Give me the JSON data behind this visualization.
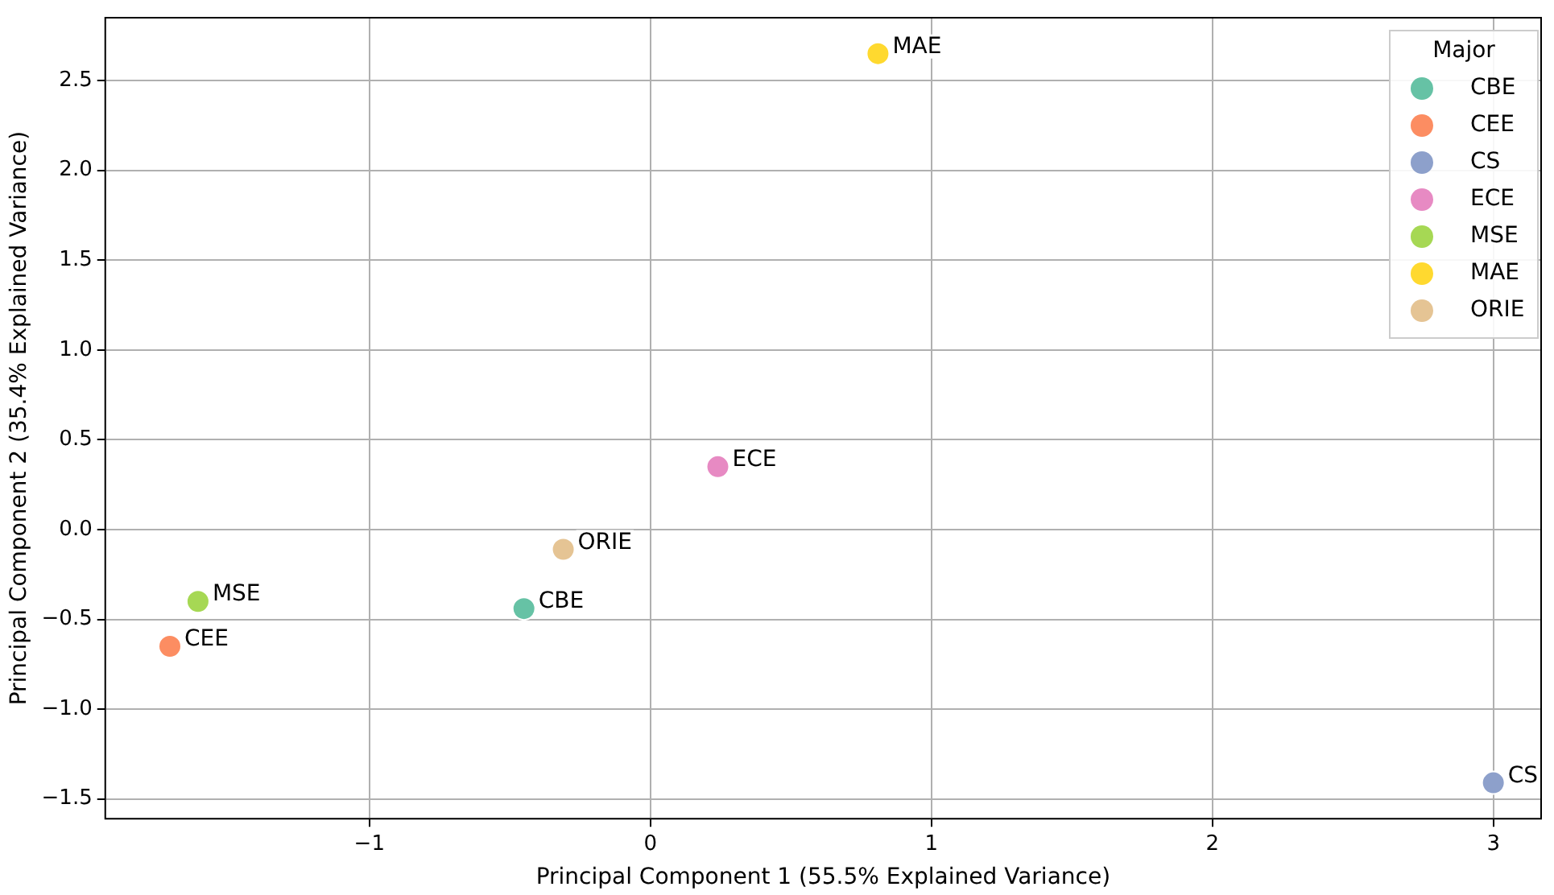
{
  "chart_data": {
    "type": "scatter",
    "xlabel": "Principal Component 1 (55.5% Explained Variance)",
    "ylabel": "Principal Component 2 (35.4% Explained Variance)",
    "legend_title": "Major",
    "legend": "top right",
    "grid": true,
    "marker": "circle",
    "xlim": [
      -1.94,
      3.17
    ],
    "ylim": [
      -1.61,
      2.85
    ],
    "xticks": [
      {
        "value": -1,
        "label": "−1"
      },
      0,
      1,
      2,
      3
    ],
    "yticks": [
      {
        "value": -1.5,
        "label": "−1.5"
      },
      {
        "value": -1,
        "label": "−1.0"
      },
      {
        "value": -0.5,
        "label": "−0.5"
      },
      {
        "value": 0,
        "label": "0.0"
      },
      0.5,
      {
        "value": 1,
        "label": "1.0"
      },
      1.5,
      {
        "value": 2,
        "label": "2.0"
      },
      2.5
    ],
    "series": [
      {
        "name": "CBE",
        "color": "#66c2a5",
        "x": [
          -0.45
        ],
        "values": [
          -0.44
        ]
      },
      {
        "name": "CEE",
        "color": "#fc8d62",
        "x": [
          -1.71
        ],
        "values": [
          -0.65
        ]
      },
      {
        "name": "CS",
        "color": "#8da0cb",
        "x": [
          3.0
        ],
        "values": [
          -1.41
        ]
      },
      {
        "name": "ECE",
        "color": "#e78ac3",
        "x": [
          0.24
        ],
        "values": [
          0.35
        ]
      },
      {
        "name": "MSE",
        "color": "#a6d854",
        "x": [
          -1.61
        ],
        "values": [
          -0.4
        ]
      },
      {
        "name": "MAE",
        "color": "#ffd92f",
        "x": [
          0.81
        ],
        "values": [
          2.65
        ]
      },
      {
        "name": "ORIE",
        "color": "#e5c494",
        "x": [
          -0.31
        ],
        "values": [
          -0.11
        ]
      }
    ],
    "annotations": [
      {
        "text": "CBE",
        "x": -0.45,
        "y": -0.44
      },
      {
        "text": "CEE",
        "x": -1.71,
        "y": -0.65
      },
      {
        "text": "CS",
        "x": 3.0,
        "y": -1.41
      },
      {
        "text": "ECE",
        "x": 0.24,
        "y": 0.35
      },
      {
        "text": "MSE",
        "x": -1.61,
        "y": -0.4
      },
      {
        "text": "MAE",
        "x": 0.81,
        "y": 2.65
      },
      {
        "text": "ORIE",
        "x": -0.31,
        "y": -0.11
      }
    ]
  }
}
